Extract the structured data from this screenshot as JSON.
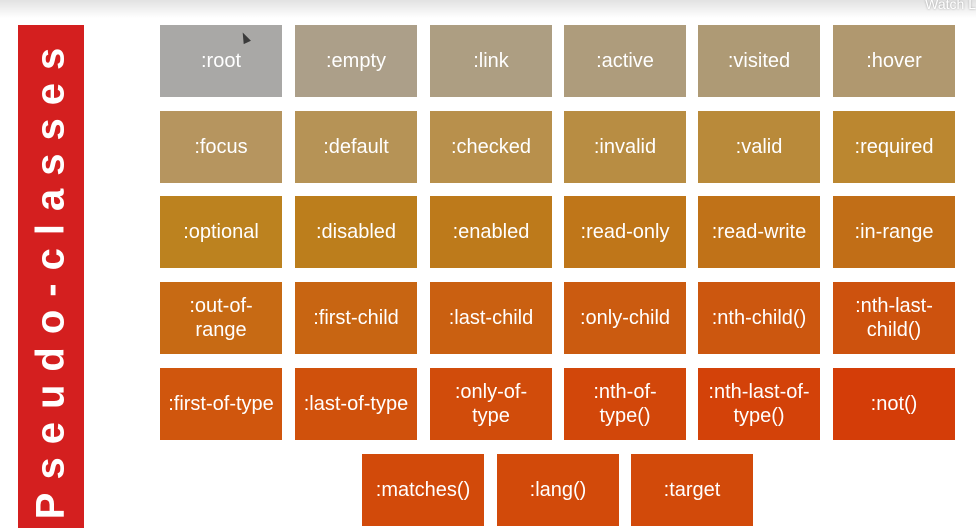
{
  "header": {
    "watch_text": "Watch L"
  },
  "sidebar": {
    "title": "Pseudo-classes"
  },
  "rows": [
    [
      {
        "label": ":root",
        "color": "#a9a8a6"
      },
      {
        "label": ":empty",
        "color": "#ac9f89"
      },
      {
        "label": ":link",
        "color": "#ad9e82"
      },
      {
        "label": ":active",
        "color": "#ae9c7c"
      },
      {
        "label": ":visited",
        "color": "#ae9a75"
      },
      {
        "label": ":hover",
        "color": "#b0986f"
      }
    ],
    [
      {
        "label": ":focus",
        "color": "#b6955f"
      },
      {
        "label": ":default",
        "color": "#b69356"
      },
      {
        "label": ":checked",
        "color": "#b8904c"
      },
      {
        "label": ":invalid",
        "color": "#b88d43"
      },
      {
        "label": ":valid",
        "color": "#b98a3a"
      },
      {
        "label": ":required",
        "color": "#bb8730"
      }
    ],
    [
      {
        "label": ":optional",
        "color": "#bc821f"
      },
      {
        "label": ":disabled",
        "color": "#bc7e1c"
      },
      {
        "label": ":enabled",
        "color": "#bd7a1b"
      },
      {
        "label": ":read-only",
        "color": "#bf7619"
      },
      {
        "label": ":read-write",
        "color": "#c07218"
      },
      {
        "label": ":in-range",
        "color": "#c16e17"
      }
    ],
    [
      {
        "label": ":out-of-range",
        "color": "#c76a14"
      },
      {
        "label": ":first-child",
        "color": "#c86512"
      },
      {
        "label": ":last-child",
        "color": "#ca6011"
      },
      {
        "label": ":only-child",
        "color": "#cb5b10"
      },
      {
        "label": ":nth-child()",
        "color": "#cc570f"
      },
      {
        "label": ":nth-last-child()",
        "color": "#cd520e"
      }
    ],
    [
      {
        "label": ":first-of-type",
        "color": "#d0560d"
      },
      {
        "label": ":last-of-type",
        "color": "#d0510c"
      },
      {
        "label": ":only-of-type",
        "color": "#d14c0b"
      },
      {
        "label": ":nth-of-type()",
        "color": "#d2470a"
      },
      {
        "label": ":nth-last-of-type()",
        "color": "#d34209"
      },
      {
        "label": ":not()",
        "color": "#d43d08"
      }
    ],
    [
      {
        "label": ":matches()",
        "color": "#d24a0a"
      },
      {
        "label": ":lang()",
        "color": "#d24a0a"
      },
      {
        "label": ":target",
        "color": "#d24a0a"
      }
    ]
  ]
}
